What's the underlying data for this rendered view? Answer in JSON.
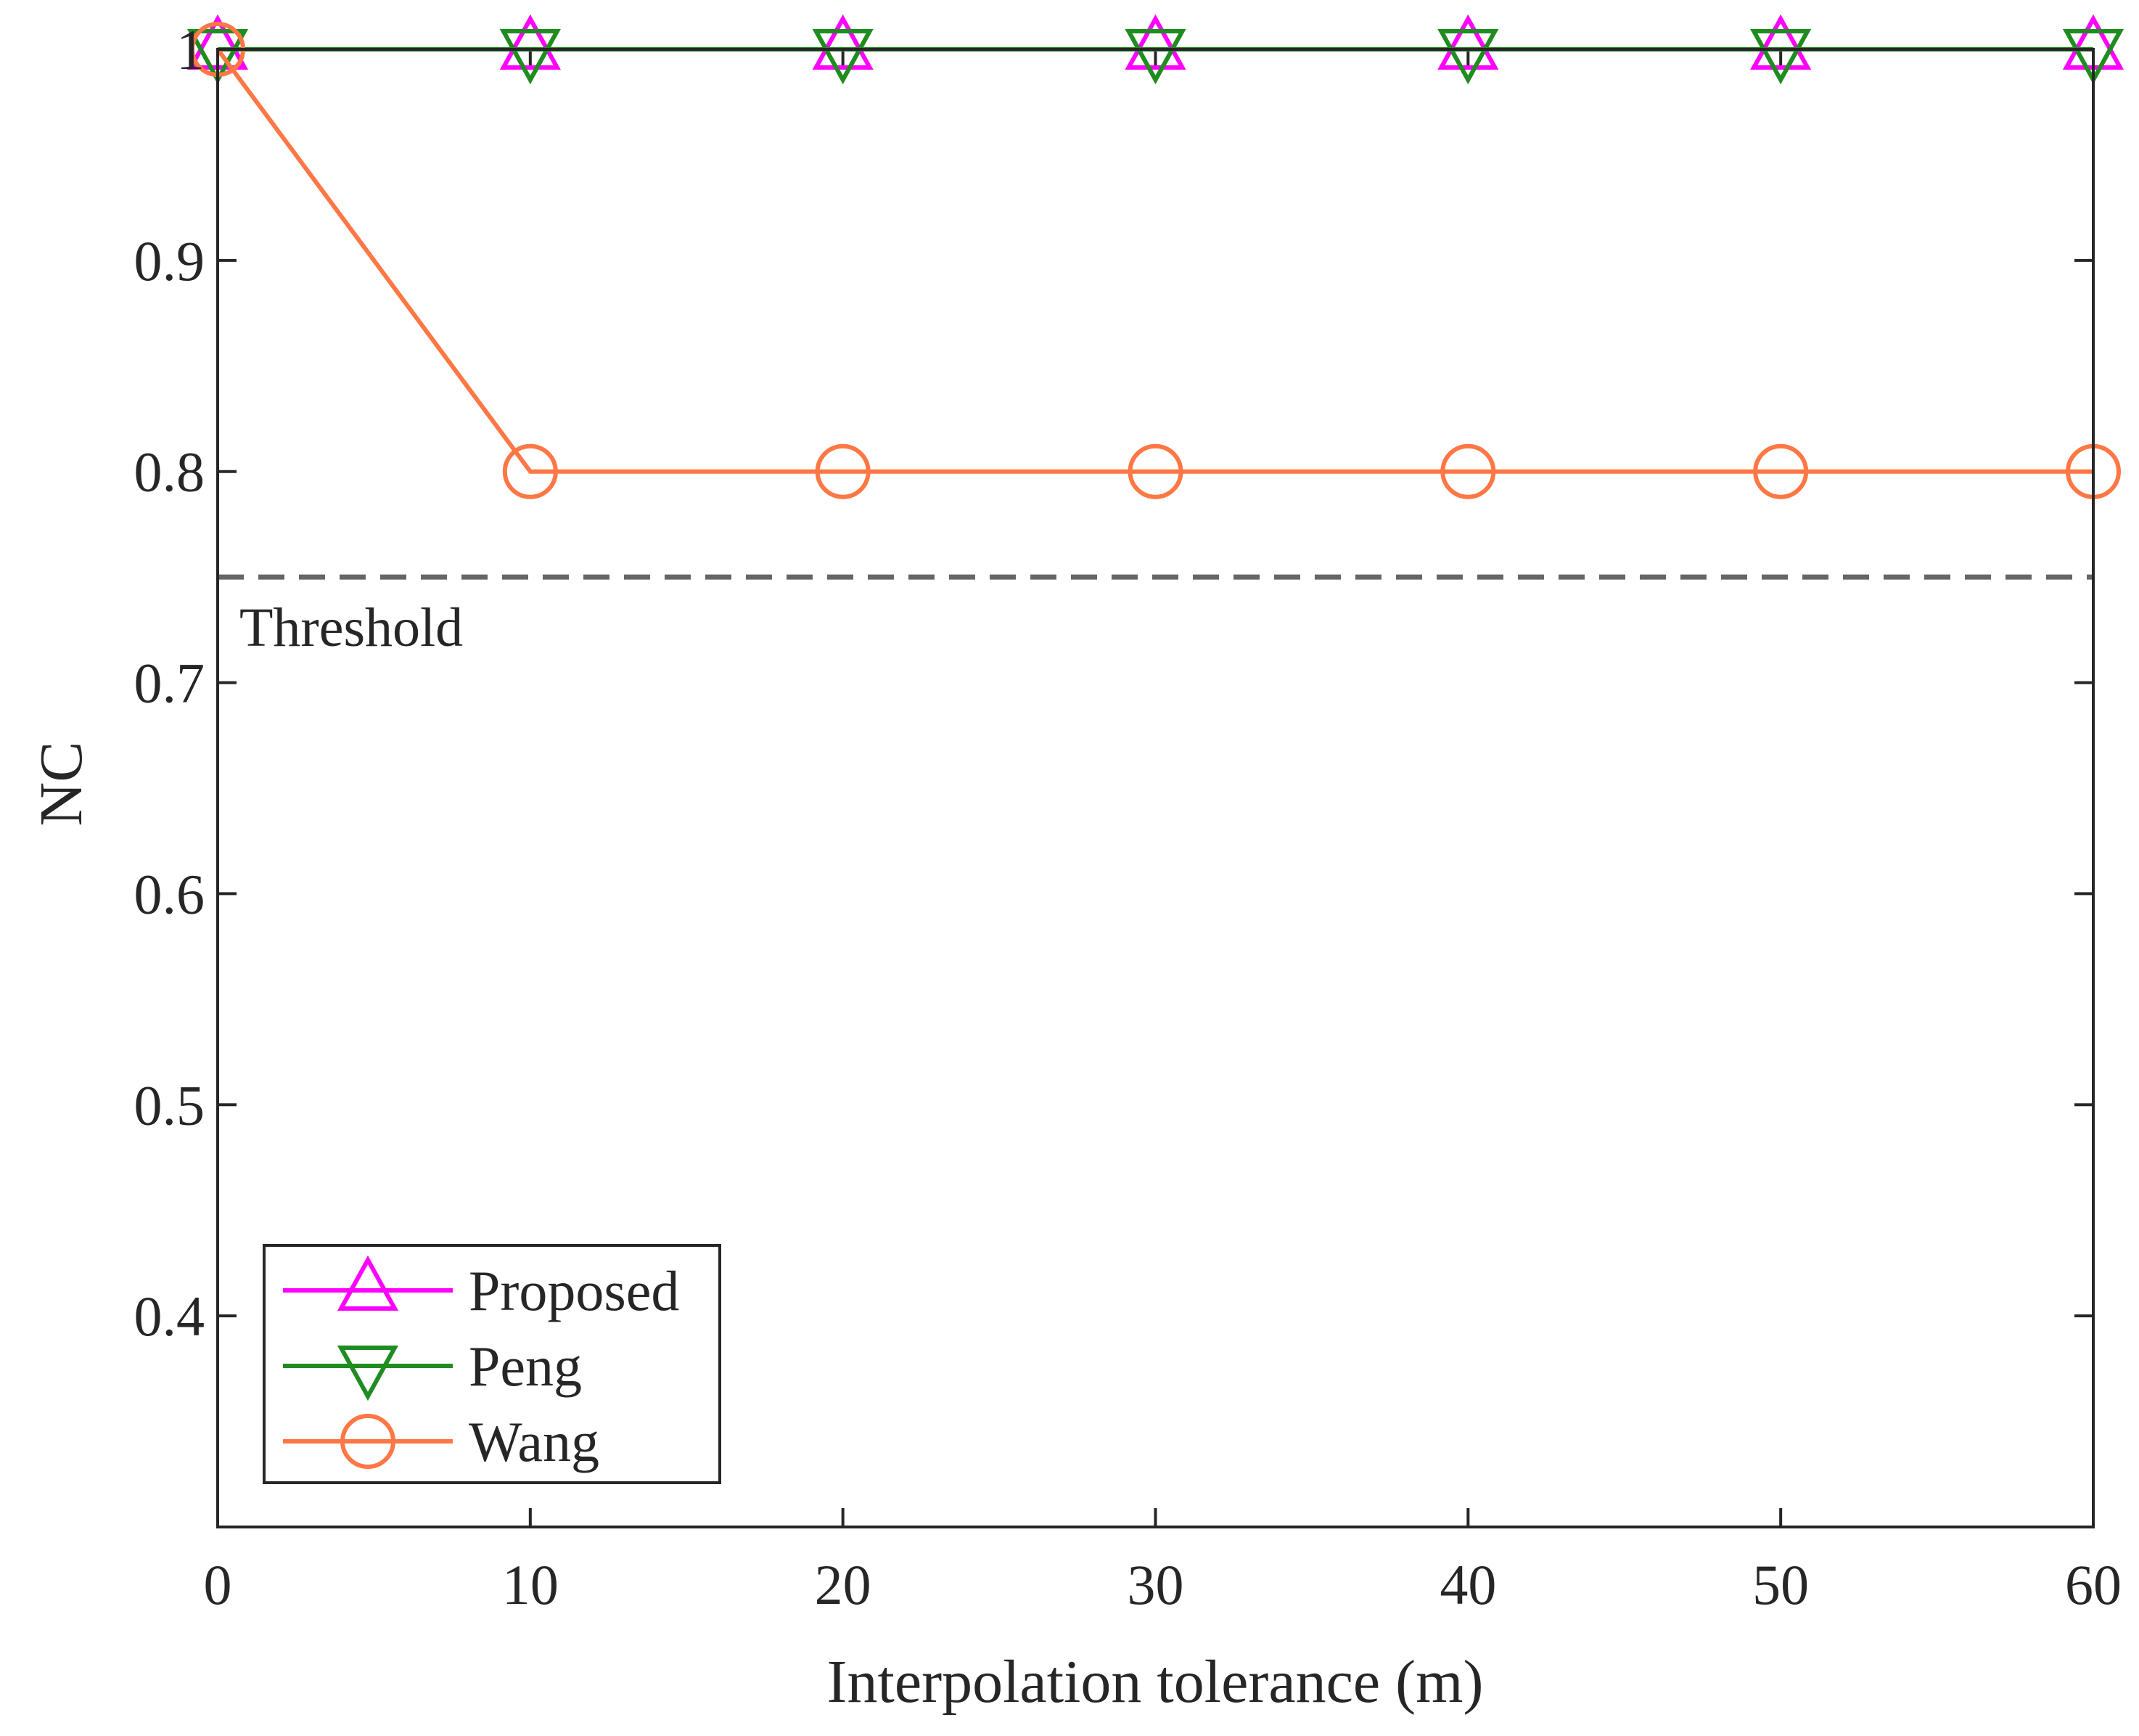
{
  "chart_data": {
    "type": "line",
    "title": "",
    "xlabel": "Interpolation tolerance (m)",
    "ylabel": "NC",
    "xlim": [
      0,
      60
    ],
    "ylim": [
      0.3,
      1.0
    ],
    "x": [
      0,
      10,
      20,
      30,
      40,
      50,
      60
    ],
    "xticks": [
      "0",
      "10",
      "20",
      "30",
      "40",
      "50",
      "60"
    ],
    "yticks": [
      "1",
      "0.9",
      "0.8",
      "0.7",
      "0.6",
      "0.5",
      "0.4"
    ],
    "ytick_values": [
      1.0,
      0.9,
      0.8,
      0.7,
      0.6,
      0.5,
      0.4
    ],
    "grid": false,
    "legend_position": "bottom-left",
    "series": [
      {
        "name": "Proposed",
        "values": [
          1,
          1,
          1,
          1,
          1,
          1,
          1
        ],
        "color": "#ff00ff",
        "marker": "triangle-up"
      },
      {
        "name": "Peng",
        "values": [
          1,
          1,
          1,
          1,
          1,
          1,
          1
        ],
        "color": "#1f8c1f",
        "marker": "triangle-down"
      },
      {
        "name": "Wang",
        "values": [
          1,
          0.8,
          0.8,
          0.8,
          0.8,
          0.8,
          0.8
        ],
        "color": "#ff7744",
        "marker": "circle"
      }
    ],
    "annotations": [
      {
        "text": "Threshold",
        "value": 0.75,
        "line_style": "dashed",
        "color": "#666666"
      }
    ]
  }
}
